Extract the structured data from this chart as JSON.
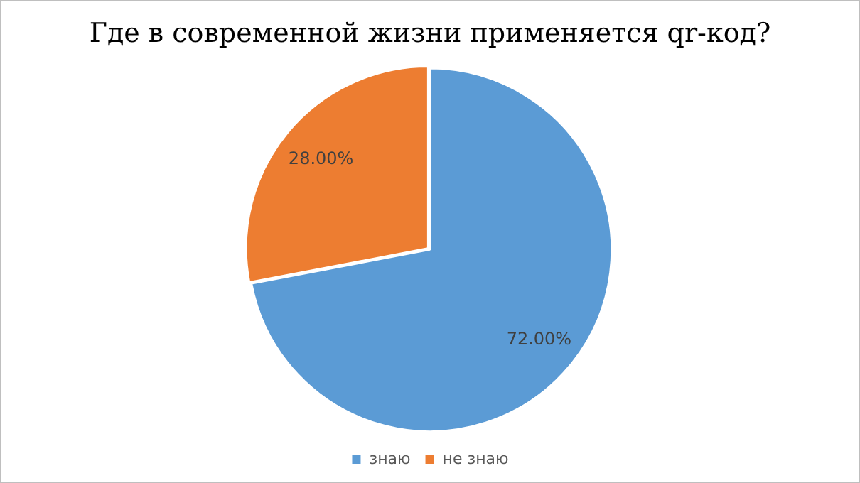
{
  "chart_data": {
    "type": "pie",
    "title": "Где в современной жизни применяется qr-код?",
    "categories": [
      "знаю",
      "не знаю"
    ],
    "values": [
      72,
      28
    ],
    "colors": [
      "#5b9bd5",
      "#ed7d31"
    ],
    "value_labels": [
      "72.00%",
      "28.00%"
    ],
    "legend": "bottom"
  }
}
